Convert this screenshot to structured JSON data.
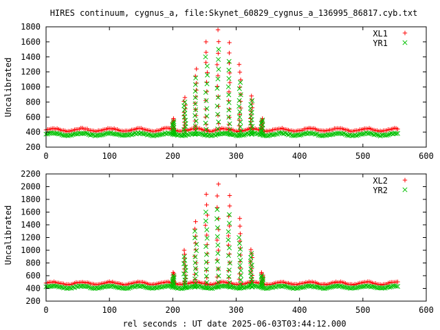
{
  "chart_data": [
    {
      "type": "scatter",
      "title": "HIRES continuum, cygnus_a, file:Skynet_60829_cygnus_a_136995_86817.cyb.txt",
      "xlabel": "",
      "ylabel": "Uncalibrated",
      "xlim": [
        0,
        600
      ],
      "ylim": [
        200,
        1800
      ],
      "xticks": [
        0,
        100,
        200,
        300,
        400,
        500,
        600
      ],
      "yticks": [
        200,
        400,
        600,
        800,
        1000,
        1200,
        1400,
        1600,
        1800
      ],
      "grid": false,
      "legend": "top-right",
      "baseline_x_range": [
        0,
        556
      ],
      "baseline_sample_step": 2.5,
      "series": [
        {
          "name": "XL1",
          "marker": "+",
          "color": "#ff0000",
          "baseline": 430,
          "ripple": 18,
          "ripple_period": 45,
          "peaks_x": [
            201,
            219,
            236,
            253,
            271,
            289,
            306,
            324,
            341
          ],
          "peaks_y": [
            580,
            860,
            1240,
            1600,
            1760,
            1590,
            1300,
            880,
            580
          ]
        },
        {
          "name": "YR1",
          "marker": "x",
          "color": "#00c000",
          "baseline": 370,
          "ripple": 15,
          "ripple_period": 45,
          "peaks_x": [
            201,
            219,
            236,
            253,
            271,
            289,
            306,
            324,
            341
          ],
          "peaks_y": [
            540,
            800,
            1120,
            1400,
            1500,
            1340,
            1060,
            820,
            560
          ]
        }
      ]
    },
    {
      "type": "scatter",
      "title": "",
      "xlabel": "rel seconds : UT date 2025-06-03T03:44:12.000",
      "ylabel": "Uncalibrated",
      "xlim": [
        0,
        600
      ],
      "ylim": [
        200,
        2200
      ],
      "xticks": [
        0,
        100,
        200,
        300,
        400,
        500,
        600
      ],
      "yticks": [
        200,
        400,
        600,
        800,
        1000,
        1200,
        1400,
        1600,
        1800,
        2000,
        2200
      ],
      "grid": false,
      "legend": "top-right",
      "baseline_x_range": [
        0,
        556
      ],
      "baseline_sample_step": 2.5,
      "series": [
        {
          "name": "XL2",
          "marker": "+",
          "color": "#ff0000",
          "baseline": 480,
          "ripple": 20,
          "ripple_period": 45,
          "peaks_x": [
            201,
            219,
            236,
            253,
            271,
            289,
            306,
            324,
            341
          ],
          "peaks_y": [
            650,
            1000,
            1450,
            1880,
            2040,
            1860,
            1500,
            1010,
            650
          ]
        },
        {
          "name": "YR2",
          "marker": "x",
          "color": "#00c000",
          "baseline": 420,
          "ripple": 17,
          "ripple_period": 45,
          "peaks_x": [
            201,
            219,
            236,
            253,
            271,
            289,
            306,
            324,
            341
          ],
          "peaks_y": [
            600,
            900,
            1300,
            1600,
            1640,
            1560,
            1200,
            950,
            600
          ]
        }
      ]
    }
  ]
}
